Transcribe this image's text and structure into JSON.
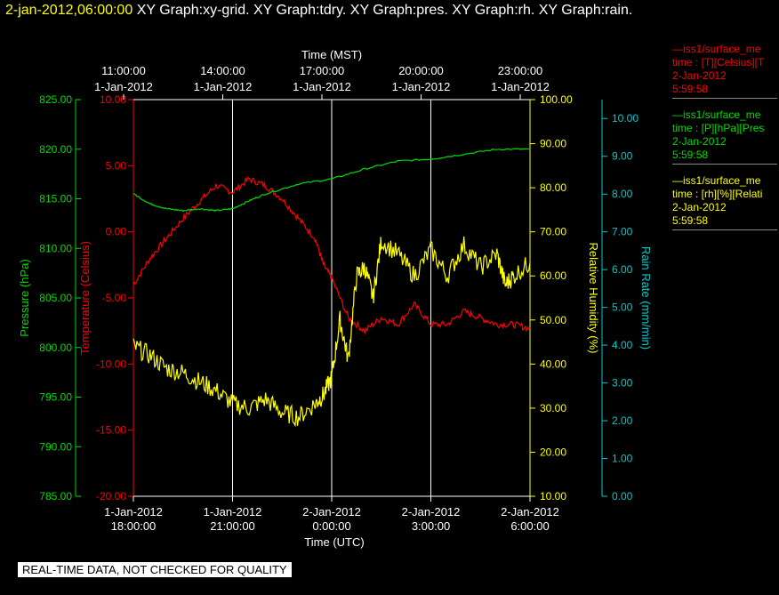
{
  "header": {
    "timestamp": "2-jan-2012,06:00:00",
    "graphs": "XY Graph:xy-grid.  XY Graph:tdry.  XY Graph:pres.  XY Graph:rh.  XY Graph:rain."
  },
  "legends": [
    {
      "line1": "—iss1/surface_me",
      "line2": "time : [T][Celsius][T",
      "line3": "2-Jan-2012",
      "line4": "5:59:58",
      "color": "#ff0000"
    },
    {
      "line1": "—iss1/surface_me",
      "line2": "time : [P][hPa][Pres",
      "line3": "2-Jan-2012",
      "line4": "5:59:58",
      "color": "#00dd00"
    },
    {
      "line1": "—iss1/surface_me",
      "line2": "time : [rh][%][Relati",
      "line3": "2-Jan-2012",
      "line4": "5:59:58",
      "color": "#ffff00"
    }
  ],
  "quality_note": "REAL-TIME DATA, NOT CHECKED FOR QUALITY",
  "chart_data": {
    "type": "line",
    "colors": {
      "temperature": "#ff0000",
      "pressure": "#00dd00",
      "humidity": "#ffff00",
      "rain": "#00cccc",
      "grid": "#ffffff"
    },
    "top_axis": {
      "title": "Time (MST)",
      "ticks": [
        {
          "date": "1-Jan-2012",
          "time": "11:00:00"
        },
        {
          "date": "1-Jan-2012",
          "time": "14:00:00"
        },
        {
          "date": "1-Jan-2012",
          "time": "17:00:00"
        },
        {
          "date": "1-Jan-2012",
          "time": "20:00:00"
        },
        {
          "date": "1-Jan-2012",
          "time": "23:00:00"
        }
      ]
    },
    "bottom_axis": {
      "title": "Time (UTC)",
      "ticks": [
        {
          "date": "1-Jan-2012",
          "time": "18:00:00"
        },
        {
          "date": "1-Jan-2012",
          "time": "21:00:00"
        },
        {
          "date": "2-Jan-2012",
          "time": "0:00:00"
        },
        {
          "date": "2-Jan-2012",
          "time": "3:00:00"
        },
        {
          "date": "2-Jan-2012",
          "time": "6:00:00"
        }
      ],
      "range_hours_utc": [
        "2012-01-01T18:00:00",
        "2012-01-02T06:00:00"
      ]
    },
    "y_axes": {
      "pressure": {
        "label": "Pressure (hPa)",
        "ylim": [
          785,
          825
        ],
        "ticks": [
          "785.00",
          "790.00",
          "795.00",
          "800.00",
          "805.00",
          "810.00",
          "815.00",
          "820.00",
          "825.00"
        ]
      },
      "temperature": {
        "label": "Temperature (Celsius)",
        "ylim": [
          -20,
          10
        ],
        "ticks": [
          "-20.00",
          "-15.00",
          "-10.00",
          "-5.00",
          "0.00",
          "5.00",
          "10.00"
        ]
      },
      "humidity": {
        "label": "Relative Humidity (%)",
        "ylim": [
          10,
          100
        ],
        "ticks": [
          "10.00",
          "20.00",
          "30.00",
          "40.00",
          "50.00",
          "60.00",
          "70.00",
          "80.00",
          "90.00",
          "100.00"
        ]
      },
      "rain": {
        "label": "Rain Rate (mm/min)",
        "ylim": [
          0,
          10.5
        ],
        "ticks": [
          "0.00",
          "1.00",
          "2.00",
          "3.00",
          "4.00",
          "5.00",
          "6.00",
          "7.00",
          "8.00",
          "9.00",
          "10.00"
        ]
      }
    },
    "series": [
      {
        "key": "temperature",
        "axis": "temperature",
        "x_hours_since_1800utc": [
          0,
          0.5,
          1,
          1.5,
          2,
          2.5,
          3,
          3.5,
          4,
          4.5,
          5,
          5.5,
          5.75,
          6,
          6.5,
          7,
          7.5,
          8,
          8.5,
          9,
          9.5,
          10,
          10.5,
          11,
          11.5,
          12
        ],
        "y": [
          -4.0,
          -2.0,
          -0.5,
          1.0,
          2.3,
          3.5,
          3.0,
          4.0,
          3.5,
          2.5,
          1.0,
          -0.5,
          -2.5,
          -3.5,
          -6.5,
          -7.5,
          -6.5,
          -7.0,
          -5.5,
          -7.0,
          -7.0,
          -6.0,
          -6.5,
          -7.0,
          -7.0,
          -7.3
        ]
      },
      {
        "key": "pressure",
        "axis": "pressure",
        "x_hours_since_1800utc": [
          0,
          0.5,
          1,
          1.5,
          2,
          2.5,
          3,
          3.5,
          4,
          5,
          6,
          7,
          8,
          9,
          10,
          11,
          12
        ],
        "y": [
          815.5,
          814.5,
          814.0,
          813.8,
          814.0,
          813.8,
          814.0,
          814.8,
          815.5,
          816.5,
          817.0,
          818.0,
          818.8,
          819.0,
          819.5,
          820.0,
          820.0
        ]
      },
      {
        "key": "humidity",
        "axis": "humidity",
        "x_hours_since_1800utc": [
          0,
          0.5,
          1,
          1.5,
          2,
          2.5,
          3,
          3.5,
          4,
          4.5,
          5,
          5.5,
          5.75,
          6,
          6.25,
          6.5,
          6.75,
          7,
          7.25,
          7.5,
          8,
          8.5,
          9,
          9.5,
          10,
          10.5,
          11,
          11.25,
          11.5,
          12
        ],
        "y": [
          44,
          42,
          39,
          38,
          36,
          34,
          31,
          30,
          32,
          29,
          28,
          31,
          33,
          37,
          50,
          41,
          60,
          62,
          55,
          68,
          65,
          60,
          66,
          60,
          67,
          62,
          65,
          58,
          60,
          63
        ]
      }
    ]
  }
}
